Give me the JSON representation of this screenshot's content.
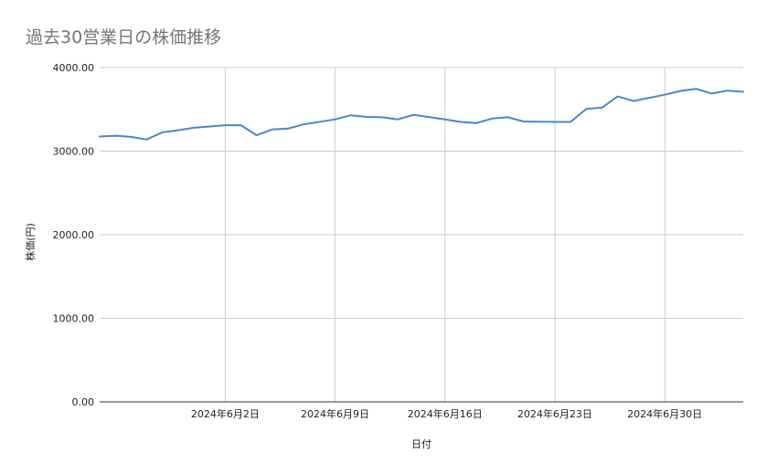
{
  "chart_data": {
    "type": "line",
    "title": "過去30営業日の株価推移",
    "xlabel": "日付",
    "ylabel": "株価(円)",
    "ylim": [
      0,
      4000
    ],
    "yticks": [
      "0.00",
      "1000.00",
      "2000.00",
      "3000.00",
      "4000.00"
    ],
    "xlim": [
      "2024-05-25",
      "2024-07-05"
    ],
    "xticks": [
      {
        "date": "2024-06-02",
        "label": "2024年6月2日"
      },
      {
        "date": "2024-06-09",
        "label": "2024年6月9日"
      },
      {
        "date": "2024-06-16",
        "label": "2024年6月16日"
      },
      {
        "date": "2024-06-23",
        "label": "2024年6月23日"
      },
      {
        "date": "2024-06-30",
        "label": "2024年6月30日"
      }
    ],
    "grid": true,
    "line_color": "#4a86c8",
    "series": [
      {
        "points": [
          {
            "x": "2024-05-25",
            "y": 3175
          },
          {
            "x": "2024-05-26",
            "y": 3185
          },
          {
            "x": "2024-05-27",
            "y": 3170
          },
          {
            "x": "2024-05-28",
            "y": 3140
          },
          {
            "x": "2024-05-29",
            "y": 3225
          },
          {
            "x": "2024-05-30",
            "y": 3250
          },
          {
            "x": "2024-05-31",
            "y": 3280
          },
          {
            "x": "2024-06-02",
            "y": 3310
          },
          {
            "x": "2024-06-03",
            "y": 3310
          },
          {
            "x": "2024-06-04",
            "y": 3190
          },
          {
            "x": "2024-06-05",
            "y": 3260
          },
          {
            "x": "2024-06-06",
            "y": 3270
          },
          {
            "x": "2024-06-07",
            "y": 3320
          },
          {
            "x": "2024-06-09",
            "y": 3380
          },
          {
            "x": "2024-06-10",
            "y": 3430
          },
          {
            "x": "2024-06-11",
            "y": 3410
          },
          {
            "x": "2024-06-12",
            "y": 3405
          },
          {
            "x": "2024-06-13",
            "y": 3380
          },
          {
            "x": "2024-06-14",
            "y": 3435
          },
          {
            "x": "2024-06-16",
            "y": 3380
          },
          {
            "x": "2024-06-17",
            "y": 3350
          },
          {
            "x": "2024-06-18",
            "y": 3335
          },
          {
            "x": "2024-06-19",
            "y": 3390
          },
          {
            "x": "2024-06-20",
            "y": 3405
          },
          {
            "x": "2024-06-21",
            "y": 3355
          },
          {
            "x": "2024-06-23",
            "y": 3350
          },
          {
            "x": "2024-06-24",
            "y": 3350
          },
          {
            "x": "2024-06-25",
            "y": 3505
          },
          {
            "x": "2024-06-26",
            "y": 3520
          },
          {
            "x": "2024-06-27",
            "y": 3655
          },
          {
            "x": "2024-06-28",
            "y": 3600
          },
          {
            "x": "2024-06-30",
            "y": 3675
          },
          {
            "x": "2024-07-01",
            "y": 3720
          },
          {
            "x": "2024-07-02",
            "y": 3745
          },
          {
            "x": "2024-07-03",
            "y": 3690
          },
          {
            "x": "2024-07-04",
            "y": 3725
          },
          {
            "x": "2024-07-05",
            "y": 3710
          }
        ]
      }
    ]
  }
}
